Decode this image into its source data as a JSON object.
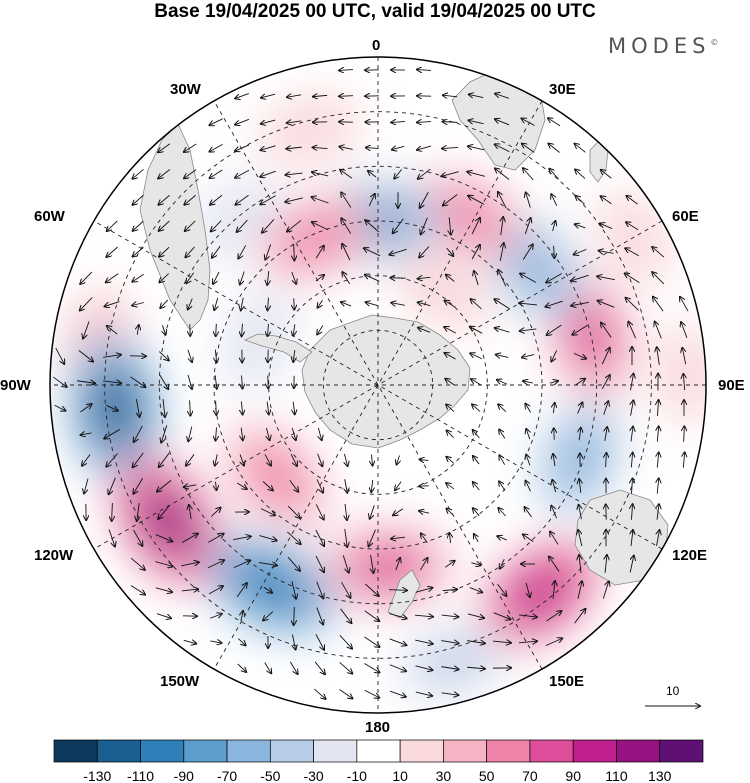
{
  "header": {
    "title": "Base 19/04/2025 00 UTC, valid 19/04/2025 00 UTC",
    "brand": "MODES",
    "brand_mark": "©"
  },
  "map": {
    "projection": "polar stereographic, south pole centered",
    "longitude_labels": {
      "top": "0",
      "top_right": "30E",
      "right_upper": "60E",
      "right": "90E",
      "right_lower": "120E",
      "bottom_right": "150E",
      "bottom": "180",
      "bottom_left": "150W",
      "left_lower": "120W",
      "left": "90W",
      "left_upper": "60W",
      "top_left": "30W"
    },
    "colors": {
      "land": "#e8e8e8",
      "coast": "#888888",
      "grid": "#222222",
      "vector": "#111111"
    },
    "vector_scale_label": "10",
    "anomaly_cells": [
      {
        "lon": -81,
        "colat": 62,
        "value": 45
      },
      {
        "lon": -95,
        "colat": 58,
        "value": -120
      },
      {
        "lon": -123,
        "colat": 55,
        "value": 118
      },
      {
        "lon": -132,
        "colat": 30,
        "value": 60
      },
      {
        "lon": -152,
        "colat": 50,
        "value": -100
      },
      {
        "lon": 177,
        "colat": 40,
        "value": 80
      },
      {
        "lon": 142,
        "colat": 58,
        "value": 95
      },
      {
        "lon": 165,
        "colat": 63,
        "value": -40
      },
      {
        "lon": 110,
        "colat": 47,
        "value": -55
      },
      {
        "lon": 77,
        "colat": 48,
        "value": 80
      },
      {
        "lon": 53,
        "colat": 43,
        "value": -60
      },
      {
        "lon": 28,
        "colat": 42,
        "value": 55
      },
      {
        "lon": 35,
        "colat": 25,
        "value": 30
      },
      {
        "lon": 0,
        "colat": 36,
        "value": -80
      },
      {
        "lon": -23,
        "colat": 35,
        "value": 60
      },
      {
        "lon": -15,
        "colat": 58,
        "value": 30
      },
      {
        "lon": -70,
        "colat": 28,
        "value": -30
      },
      {
        "lon": 60,
        "colat": 65,
        "value": 20
      },
      {
        "lon": 88,
        "colat": 68,
        "value": 20
      },
      {
        "lon": -40,
        "colat": 48,
        "value": -20
      }
    ],
    "circulation_centers": [
      {
        "lon": -95,
        "colat": 58,
        "sense": "cw"
      },
      {
        "lon": -123,
        "colat": 55,
        "sense": "ccw"
      },
      {
        "lon": -152,
        "colat": 50,
        "sense": "cw"
      },
      {
        "lon": 177,
        "colat": 40,
        "sense": "ccw"
      },
      {
        "lon": 142,
        "colat": 58,
        "sense": "ccw"
      },
      {
        "lon": 77,
        "colat": 48,
        "sense": "ccw"
      },
      {
        "lon": 53,
        "colat": 43,
        "sense": "cw"
      },
      {
        "lon": 28,
        "colat": 42,
        "sense": "ccw"
      },
      {
        "lon": 0,
        "colat": 36,
        "sense": "cw"
      },
      {
        "lon": -23,
        "colat": 35,
        "sense": "ccw"
      },
      {
        "lon": -81,
        "colat": 62,
        "sense": "ccw"
      }
    ]
  },
  "colorbar": {
    "colors": [
      "#0d3a5c",
      "#1a5e92",
      "#2f7fb8",
      "#5b9dcc",
      "#8ab5dc",
      "#b8cde7",
      "#e3e5f2",
      "#ffffff",
      "#f9d9dc",
      "#f4b4c3",
      "#ed83a9",
      "#dd4d99",
      "#c11e8e",
      "#981381",
      "#5e1075"
    ],
    "tick_labels": [
      "-130",
      "-110",
      "-90",
      "-70",
      "-50",
      "-30",
      "-10",
      "10",
      "30",
      "50",
      "70",
      "90",
      "110",
      "130"
    ]
  }
}
